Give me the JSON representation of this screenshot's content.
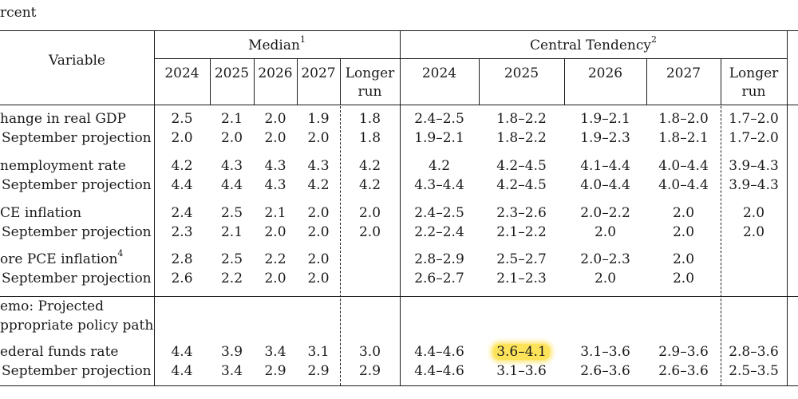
{
  "unit_label": "rcent",
  "header": {
    "variable": "Variable",
    "median": "Median",
    "median_note": "1",
    "central_tendency": "Central Tendency",
    "central_tendency_note": "2",
    "years": [
      "2024",
      "2025",
      "2026",
      "2027"
    ],
    "longer_run_line1": "Longer",
    "longer_run_line2": "run"
  },
  "rows": [
    {
      "label": "hange in real GDP",
      "note": "",
      "median": [
        "2.5",
        "2.1",
        "2.0",
        "1.9",
        "1.8"
      ],
      "ct": [
        "2.4–2.5",
        "1.8–2.2",
        "1.9–2.1",
        "1.8–2.0",
        "1.7–2.0"
      ]
    },
    {
      "label": "September projection",
      "note": "",
      "median": [
        "2.0",
        "2.0",
        "2.0",
        "2.0",
        "1.8"
      ],
      "ct": [
        "1.9–2.1",
        "1.8–2.2",
        "1.9–2.3",
        "1.8–2.1",
        "1.7–2.0"
      ]
    },
    {
      "label": "nemployment rate",
      "note": "",
      "median": [
        "4.2",
        "4.3",
        "4.3",
        "4.3",
        "4.2"
      ],
      "ct": [
        "4.2",
        "4.2–4.5",
        "4.1–4.4",
        "4.0–4.4",
        "3.9–4.3"
      ]
    },
    {
      "label": "September projection",
      "note": "",
      "median": [
        "4.4",
        "4.4",
        "4.3",
        "4.2",
        "4.2"
      ],
      "ct": [
        "4.3–4.4",
        "4.2–4.5",
        "4.0–4.4",
        "4.0–4.4",
        "3.9–4.3"
      ]
    },
    {
      "label": "CE inflation",
      "note": "",
      "median": [
        "2.4",
        "2.5",
        "2.1",
        "2.0",
        "2.0"
      ],
      "ct": [
        "2.4–2.5",
        "2.3–2.6",
        "2.0–2.2",
        "2.0",
        "2.0"
      ]
    },
    {
      "label": "September projection",
      "note": "",
      "median": [
        "2.3",
        "2.1",
        "2.0",
        "2.0",
        "2.0"
      ],
      "ct": [
        "2.2–2.4",
        "2.1–2.2",
        "2.0",
        "2.0",
        "2.0"
      ]
    },
    {
      "label": "ore PCE inflation",
      "note": "4",
      "median": [
        "2.8",
        "2.5",
        "2.2",
        "2.0",
        ""
      ],
      "ct": [
        "2.8–2.9",
        "2.5–2.7",
        "2.0–2.3",
        "2.0",
        ""
      ]
    },
    {
      "label": "September projection",
      "note": "",
      "median": [
        "2.6",
        "2.2",
        "2.0",
        "2.0",
        ""
      ],
      "ct": [
        "2.6–2.7",
        "2.1–2.3",
        "2.0",
        "2.0",
        ""
      ]
    },
    {
      "label": "ederal funds rate",
      "note": "",
      "median": [
        "4.4",
        "3.9",
        "3.4",
        "3.1",
        "3.0"
      ],
      "ct": [
        "4.4–4.6",
        "3.6–4.1",
        "3.1–3.6",
        "2.9–3.6",
        "2.8–3.6"
      ]
    },
    {
      "label": "September projection",
      "note": "",
      "median": [
        "4.4",
        "3.4",
        "2.9",
        "2.9",
        "2.9"
      ],
      "ct": [
        "4.4–4.6",
        "3.1–3.6",
        "2.6–3.6",
        "2.6–3.6",
        "2.5–3.5"
      ]
    }
  ],
  "memo_line1": "emo: Projected",
  "memo_line2": "ppropriate policy path",
  "highlight_color": "#fde35a"
}
